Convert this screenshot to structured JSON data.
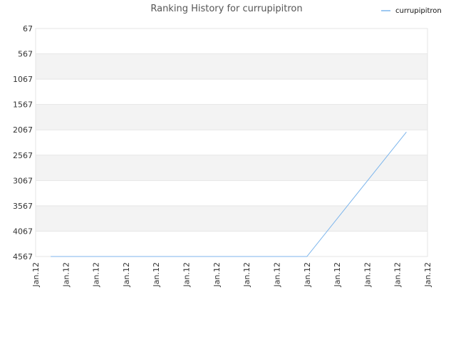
{
  "chart_data": {
    "type": "line",
    "title": "Ranking History for currupipitron",
    "xlabel": "",
    "ylabel": "",
    "y_inverted": true,
    "ylim": [
      67,
      4567
    ],
    "y_ticks": [
      "67",
      "567",
      "1067",
      "1567",
      "2067",
      "2567",
      "3067",
      "3567",
      "4067",
      "4567"
    ],
    "x_ticks": [
      "Jan.12",
      "Jan.12",
      "Jan.12",
      "Jan.12",
      "Jan.12",
      "Jan.12",
      "Jan.12",
      "Jan.12",
      "Jan.12",
      "Jan.12",
      "Jan.12",
      "Jan.12",
      "Jan.12",
      "Jan.12"
    ],
    "grid": true,
    "legend_position": "top-right",
    "series": [
      {
        "name": "currupipitron",
        "color": "#7cb5ec",
        "x_ticks_index": [
          0.5,
          9,
          12.3
        ],
        "values": [
          4567,
          4567,
          2110
        ]
      }
    ],
    "band_colors": [
      "#ffffff",
      "#f3f3f3"
    ]
  }
}
